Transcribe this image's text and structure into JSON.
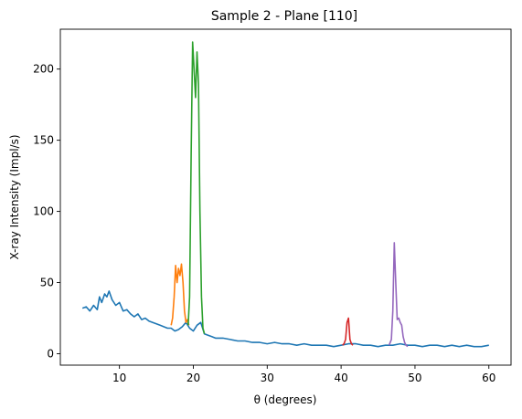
{
  "chart_data": {
    "type": "line",
    "title": "Sample 2 - Plane [110]",
    "xlabel": "θ (degrees)",
    "ylabel": "X-ray Intensity (Impl/s)",
    "xlim": [
      2,
      63
    ],
    "ylim": [
      -8,
      228
    ],
    "xticks": [
      10,
      20,
      30,
      40,
      50,
      60
    ],
    "yticks": [
      0,
      50,
      100,
      150,
      200
    ],
    "grid": false,
    "legend": "none",
    "series": [
      {
        "color": "#1f77b4",
        "x": [
          5,
          5.5,
          6,
          6.5,
          7,
          7.3,
          7.6,
          8,
          8.3,
          8.6,
          9,
          9.5,
          10,
          10.5,
          11,
          11.5,
          12,
          12.5,
          13,
          13.5,
          14,
          14.5,
          15,
          15.5,
          16,
          16.5,
          17,
          17.5,
          18,
          18.5,
          19,
          19.5,
          20,
          20.5,
          21,
          21.5,
          22,
          22.5,
          23,
          24,
          25,
          26,
          27,
          28,
          29,
          30,
          31,
          32,
          33,
          34,
          35,
          36,
          37,
          38,
          39,
          40,
          41,
          42,
          43,
          44,
          45,
          46,
          47,
          48,
          49,
          50,
          51,
          52,
          53,
          54,
          55,
          56,
          57,
          58,
          59,
          60
        ],
        "y": [
          32,
          33,
          30,
          34,
          31,
          40,
          36,
          42,
          40,
          44,
          38,
          34,
          36,
          30,
          31,
          28,
          26,
          28,
          24,
          25,
          23,
          22,
          21,
          20,
          19,
          18,
          18,
          16,
          17,
          19,
          22,
          18,
          16,
          20,
          22,
          14,
          13,
          12,
          11,
          11,
          10,
          9,
          9,
          8,
          8,
          7,
          8,
          7,
          7,
          6,
          7,
          6,
          6,
          6,
          5,
          6,
          7,
          7,
          6,
          6,
          5,
          6,
          6,
          7,
          6,
          6,
          5,
          6,
          6,
          5,
          6,
          5,
          6,
          5,
          5,
          6
        ]
      },
      {
        "color": "#ff7f0e",
        "x": [
          17,
          17.2,
          17.4,
          17.6,
          17.8,
          18,
          18.2,
          18.4,
          18.6,
          18.8,
          19,
          19.2,
          19.4
        ],
        "y": [
          20,
          25,
          40,
          62,
          50,
          60,
          55,
          63,
          50,
          30,
          22,
          24,
          20
        ]
      },
      {
        "color": "#2ca02c",
        "x": [
          19.3,
          19.5,
          19.7,
          19.9,
          20.1,
          20.3,
          20.5,
          20.7,
          20.9,
          21.1,
          21.3,
          21.5
        ],
        "y": [
          20,
          40,
          140,
          219,
          200,
          180,
          212,
          190,
          100,
          40,
          18,
          14
        ]
      },
      {
        "color": "#d62728",
        "x": [
          40.2,
          40.4,
          40.6,
          40.8,
          41,
          41.2,
          41.4,
          41.6
        ],
        "y": [
          6,
          7,
          10,
          22,
          25,
          10,
          7,
          6
        ]
      },
      {
        "color": "#9467bd",
        "x": [
          46.5,
          46.8,
          47,
          47.2,
          47.4,
          47.6,
          47.8,
          48,
          48.2,
          48.4,
          48.6,
          48.8,
          49
        ],
        "y": [
          6,
          10,
          30,
          78,
          50,
          24,
          25,
          22,
          20,
          12,
          8,
          6,
          5
        ]
      }
    ]
  }
}
